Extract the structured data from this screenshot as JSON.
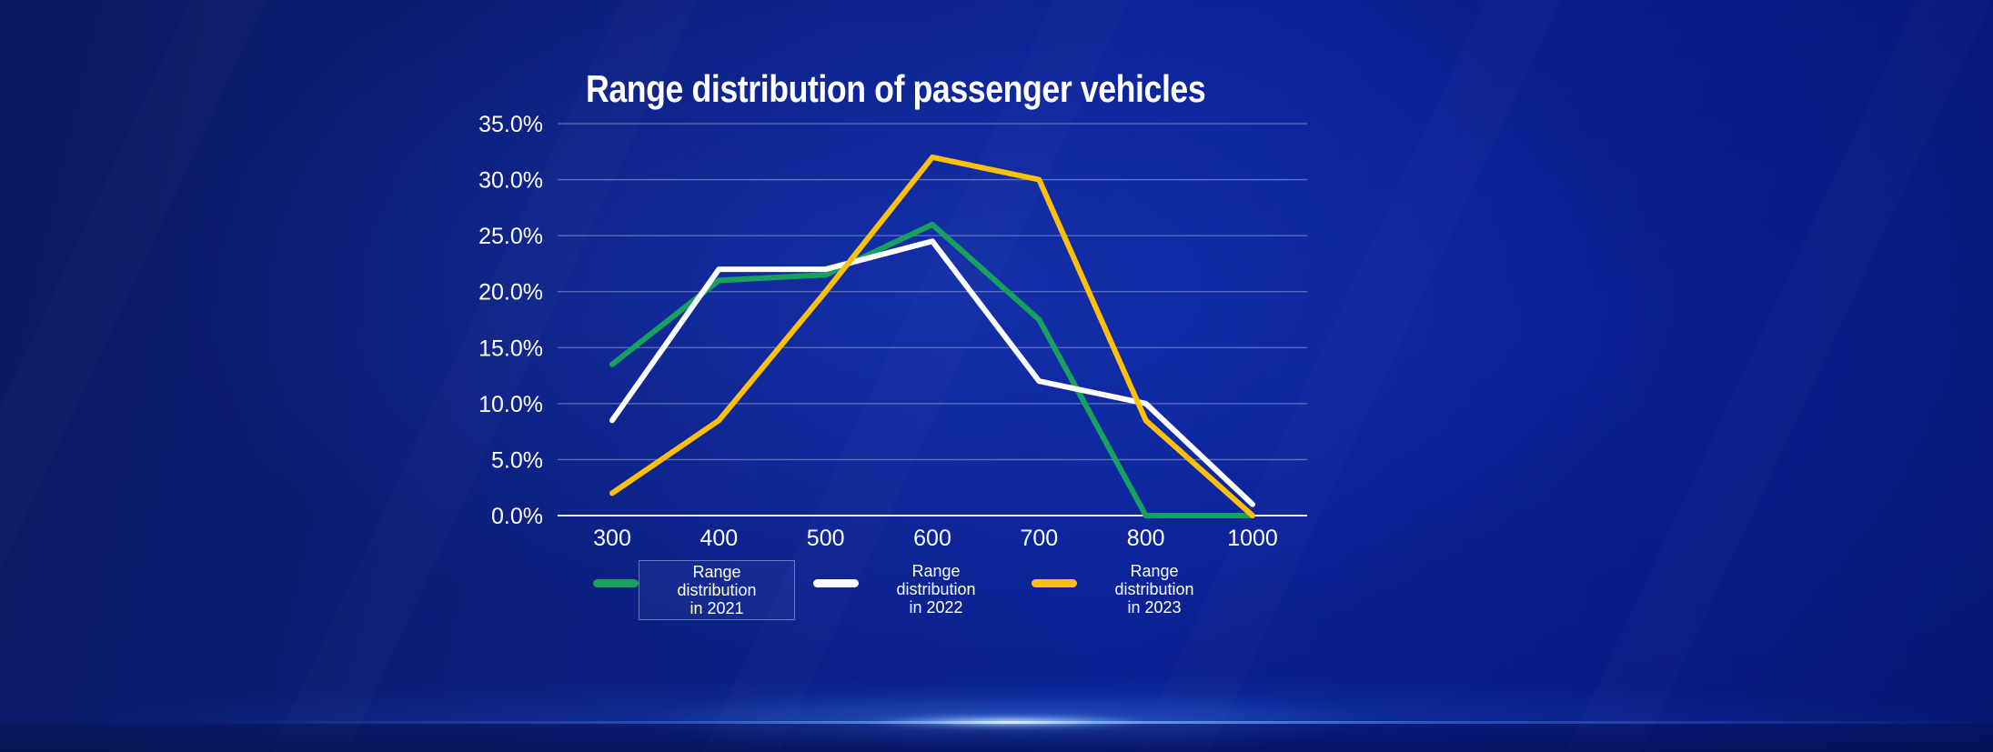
{
  "title": "Range distribution of passenger vehicles",
  "chart_data": {
    "type": "line",
    "title": "Range distribution of passenger vehicles",
    "categories": [
      "300",
      "400",
      "500",
      "600",
      "700",
      "800",
      "1000"
    ],
    "series": [
      {
        "name": "Range distribution in 2021",
        "legend_lines": "Range\ndistribution\nin 2021",
        "color": "#18A15E",
        "values": [
          13.5,
          21,
          21.5,
          26,
          17.5,
          0,
          0
        ]
      },
      {
        "name": "Range distribution in 2022",
        "legend_lines": "Range\ndistribution\nin 2022",
        "color": "#FFFFFF",
        "values": [
          8.5,
          22,
          22,
          24.5,
          12,
          10,
          1
        ]
      },
      {
        "name": "Range distribution in 2023",
        "legend_lines": "Range\ndistribution\nin 2023",
        "color": "#FFC008",
        "values": [
          2,
          8.5,
          20,
          32,
          30,
          8.5,
          0
        ]
      }
    ],
    "xlabel": "",
    "ylabel": "",
    "ylim": [
      0,
      35
    ],
    "ytick_step": 5,
    "ytick_decimals": 1,
    "ytick_suffix": "%",
    "grid": true,
    "legend_position": "bottom",
    "legend_highlighted_item": "Range distribution in 2021"
  },
  "colors": {
    "background": "#0A1D7C",
    "series_2021": "#18A15E",
    "series_2022": "#FFFFFF",
    "series_2023": "#FFC008",
    "gridline": "#A9B4D9",
    "axis_text": "#FFFFFF",
    "horizon_glow": "#9ED4FF"
  }
}
